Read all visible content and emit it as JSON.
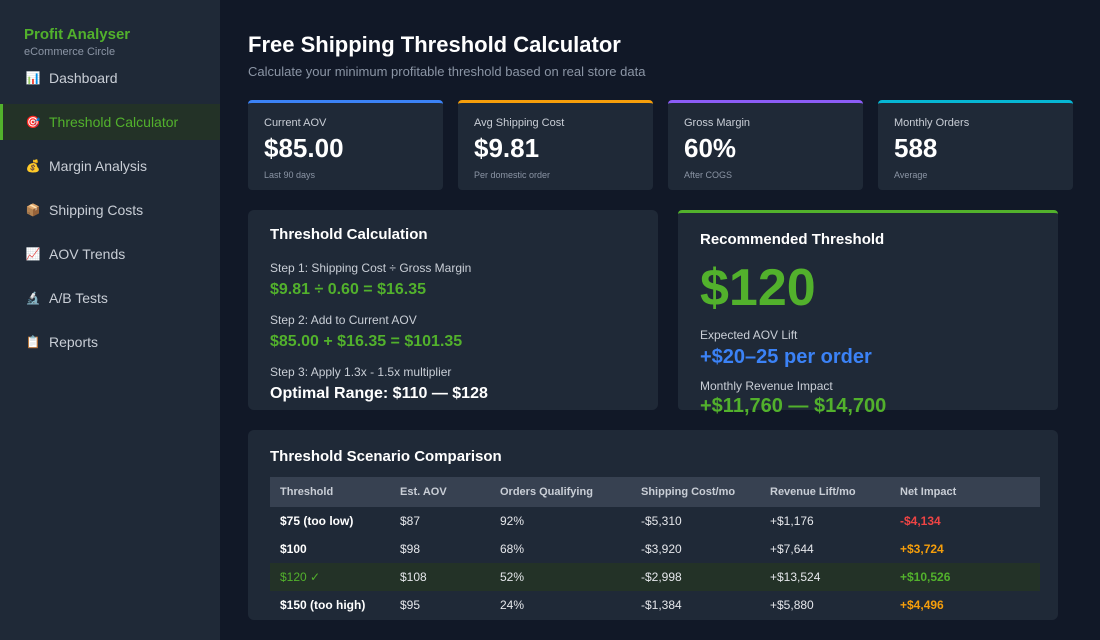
{
  "brand": {
    "title": "Profit Analyser",
    "subtitle": "eCommerce Circle"
  },
  "sidebar": {
    "items": [
      {
        "label": "Dashboard",
        "icon": "bar-chart-icon",
        "glyph": "📊"
      },
      {
        "label": "Threshold Calculator",
        "icon": "target-icon",
        "glyph": "🎯"
      },
      {
        "label": "Margin Analysis",
        "icon": "money-bag-icon",
        "glyph": "💰"
      },
      {
        "label": "Shipping Costs",
        "icon": "package-icon",
        "glyph": "📦"
      },
      {
        "label": "AOV Trends",
        "icon": "trend-up-icon",
        "glyph": "📈"
      },
      {
        "label": "A/B Tests",
        "icon": "microscope-icon",
        "glyph": "🔬"
      },
      {
        "label": "Reports",
        "icon": "clipboard-icon",
        "glyph": "📋"
      }
    ]
  },
  "header": {
    "title": "Free Shipping Threshold Calculator",
    "subtitle": "Calculate your minimum profitable threshold based on real store data"
  },
  "stats": [
    {
      "label": "Current AOV",
      "value": "$85.00",
      "note": "Last 90 days",
      "color": "#3b82f6"
    },
    {
      "label": "Avg Shipping Cost",
      "value": "$9.81",
      "note": "Per domestic order",
      "color": "#f59e0b"
    },
    {
      "label": "Gross Margin",
      "value": "60%",
      "note": "After COGS",
      "color": "#8b5cf6"
    },
    {
      "label": "Monthly Orders",
      "value": "588",
      "note": "Average",
      "color": "#06b6d4"
    }
  ],
  "calculation": {
    "title": "Threshold Calculation",
    "step1_label": "Step 1: Shipping Cost ÷ Gross Margin",
    "step1_value": "$9.81 ÷ 0.60 = $16.35",
    "step2_label": "Step 2: Add to Current AOV",
    "step2_value": "$85.00 + $16.35 = $101.35",
    "step3_label": "Step 3: Apply 1.3x - 1.5x multiplier",
    "step3_value": "Optimal Range: $110 — $128"
  },
  "recommendation": {
    "title": "Recommended Threshold",
    "value": "$120",
    "aov_label": "Expected AOV Lift",
    "aov_value": "+$20–25 per order",
    "revenue_label": "Monthly Revenue Impact",
    "revenue_value": "+$11,760 — $14,700"
  },
  "scenarios": {
    "title": "Threshold Scenario Comparison",
    "columns": [
      "Threshold",
      "Est. AOV",
      "Orders Qualifying",
      "Shipping Cost/mo",
      "Revenue Lift/mo",
      "Net Impact"
    ],
    "rows": [
      {
        "threshold": "$75 (too low)",
        "aov": "$87",
        "orders": "92%",
        "shipping": "-$5,310",
        "revenue": "+$1,176",
        "net": "-$4,134",
        "net_color": "red",
        "highlight": false
      },
      {
        "threshold": "$100",
        "aov": "$98",
        "orders": "68%",
        "shipping": "-$3,920",
        "revenue": "+$7,644",
        "net": "+$3,724",
        "net_color": "orange",
        "highlight": false
      },
      {
        "threshold": "$120 ✓",
        "aov": "$108",
        "orders": "52%",
        "shipping": "-$2,998",
        "revenue": "+$13,524",
        "net": "+$10,526",
        "net_color": "green",
        "highlight": true
      },
      {
        "threshold": "$150 (too high)",
        "aov": "$95",
        "orders": "24%",
        "shipping": "-$1,384",
        "revenue": "+$5,880",
        "net": "+$4,496",
        "net_color": "orange",
        "highlight": false
      }
    ]
  },
  "colors": {
    "accent_green": "#52b12c",
    "accent_blue": "#3b82f6",
    "negative": "#ef4444",
    "warning": "#f59e0b"
  }
}
